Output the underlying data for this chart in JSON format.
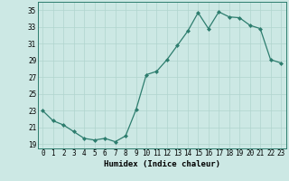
{
  "x": [
    0,
    1,
    2,
    3,
    4,
    5,
    6,
    7,
    8,
    9,
    10,
    11,
    12,
    13,
    14,
    15,
    16,
    17,
    18,
    19,
    20,
    21,
    22,
    23
  ],
  "y": [
    23.0,
    21.8,
    21.3,
    20.5,
    19.7,
    19.5,
    19.7,
    19.3,
    20.0,
    23.1,
    27.3,
    27.7,
    29.1,
    30.8,
    32.5,
    34.7,
    32.8,
    34.8,
    34.2,
    34.1,
    33.2,
    32.8,
    29.1,
    28.7
  ],
  "line_color": "#2d7d6e",
  "marker": "D",
  "bg_color": "#cce8e4",
  "grid_color": "#b0d4ce",
  "xlabel": "Humidex (Indice chaleur)",
  "xlim": [
    -0.5,
    23.5
  ],
  "ylim": [
    18.5,
    36.0
  ],
  "yticks": [
    19,
    21,
    23,
    25,
    27,
    29,
    31,
    33,
    35
  ],
  "xticks": [
    0,
    1,
    2,
    3,
    4,
    5,
    6,
    7,
    8,
    9,
    10,
    11,
    12,
    13,
    14,
    15,
    16,
    17,
    18,
    19,
    20,
    21,
    22,
    23
  ],
  "tick_fontsize": 5.5,
  "xlabel_fontsize": 6.5
}
